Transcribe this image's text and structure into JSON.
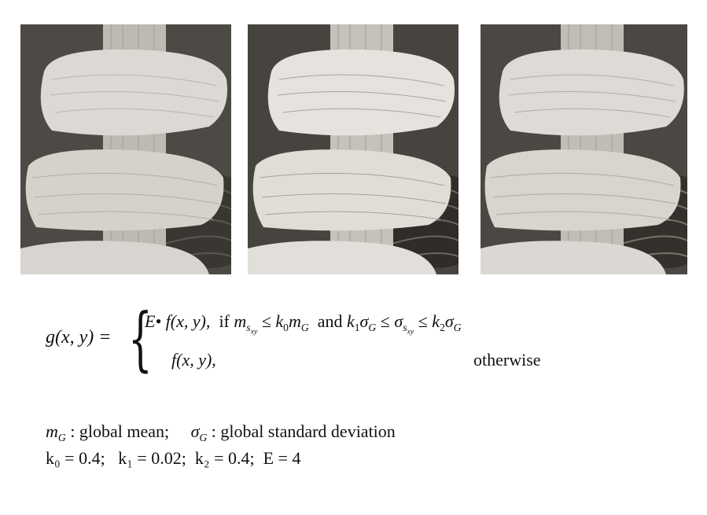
{
  "images": [
    {
      "name": "original-sem-image"
    },
    {
      "name": "enhanced-sem-image-a"
    },
    {
      "name": "enhanced-sem-image-b"
    }
  ],
  "equation": {
    "lhs": "g(x, y) =",
    "case1_prefix": "E• f(x, y),",
    "case1_if": "if",
    "case1_and": "and",
    "case2": "f(x, y),",
    "otherwise": "otherwise"
  },
  "definitions": {
    "global_mean": ": global  mean;",
    "global_std": ": global  standard deviation",
    "k0": "k₀ = 0.4;",
    "k1": "k₁ = 0.02;",
    "k2": "k₂ = 0.4;",
    "E": "E = 4"
  },
  "colors": {
    "background": "#4f4b46",
    "specimen": "#d9d6d1"
  }
}
